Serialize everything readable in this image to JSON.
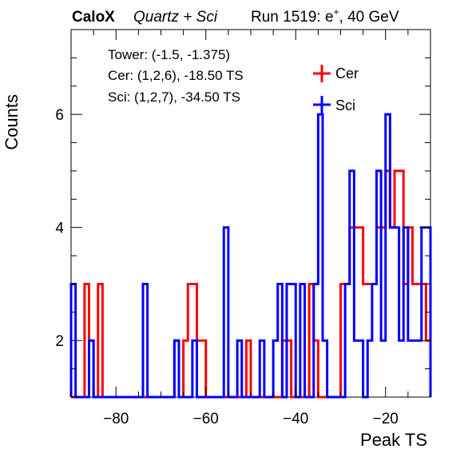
{
  "header": {
    "calox": "CaloX",
    "detector": "Quartz + Sci",
    "run_prefix": "Run 1519: e",
    "run_sup": "+",
    "run_suffix": ", 40 GeV"
  },
  "info": {
    "tower": "Tower: (-1.5, -1.375)",
    "cer": "Cer: (1,2,6), -18.50 TS",
    "sci": "Sci: (1,2,7), -34.50 TS"
  },
  "chart_data": {
    "type": "histogram",
    "xlabel": "Peak TS",
    "ylabel": "Counts",
    "xlim": [
      -90,
      -10
    ],
    "ylim": [
      1,
      7.5
    ],
    "bin_width": 1,
    "x_ticks": [
      -80,
      -60,
      -40,
      -20
    ],
    "x_tick_labels": [
      "−80",
      "−60",
      "−40",
      "−20"
    ],
    "y_ticks": [
      2,
      4,
      6
    ],
    "y_tick_labels": [
      "2",
      "4",
      "6"
    ],
    "legend_position": "top-right",
    "series": [
      {
        "name": "Cer",
        "color": "#ff0000",
        "bin_starts": [
          -90,
          -89,
          -88,
          -87,
          -86,
          -85,
          -84,
          -83,
          -82,
          -81,
          -80,
          -79,
          -78,
          -77,
          -76,
          -75,
          -74,
          -73,
          -72,
          -71,
          -70,
          -69,
          -68,
          -67,
          -66,
          -65,
          -64,
          -63,
          -62,
          -61,
          -60,
          -59,
          -58,
          -57,
          -56,
          -55,
          -54,
          -53,
          -52,
          -51,
          -50,
          -49,
          -48,
          -47,
          -46,
          -45,
          -44,
          -43,
          -42,
          -41,
          -40,
          -39,
          -38,
          -37,
          -36,
          -35,
          -34,
          -33,
          -32,
          -31,
          -30,
          -29,
          -28,
          -27,
          -26,
          -25,
          -24,
          -23,
          -22,
          -21,
          -20,
          -19,
          -18,
          -17,
          -16,
          -15,
          -14,
          -13,
          -12,
          -11
        ],
        "counts": [
          1,
          1,
          1,
          3,
          2,
          1,
          3,
          1,
          1,
          1,
          1,
          1,
          1,
          1,
          1,
          1,
          1,
          1,
          1,
          1,
          1,
          1,
          1,
          2,
          1,
          2,
          3,
          3,
          2,
          2,
          1,
          1,
          1,
          1,
          1,
          1,
          1,
          1,
          1,
          2,
          1,
          1,
          1,
          1,
          1,
          1,
          1,
          2,
          2,
          1,
          1,
          1,
          1,
          3,
          2,
          1,
          1,
          1,
          1,
          1,
          3,
          3,
          4,
          4,
          4,
          3,
          3,
          3,
          4,
          4,
          5,
          4,
          5,
          5,
          3,
          4,
          3,
          3,
          3,
          2
        ]
      },
      {
        "name": "Sci",
        "color": "#0000ff",
        "bin_starts": [
          -90,
          -89,
          -88,
          -87,
          -86,
          -85,
          -84,
          -83,
          -82,
          -81,
          -80,
          -79,
          -78,
          -77,
          -76,
          -75,
          -74,
          -73,
          -72,
          -71,
          -70,
          -69,
          -68,
          -67,
          -66,
          -65,
          -64,
          -63,
          -62,
          -61,
          -60,
          -59,
          -58,
          -57,
          -56,
          -55,
          -54,
          -53,
          -52,
          -51,
          -50,
          -49,
          -48,
          -47,
          -46,
          -45,
          -44,
          -43,
          -42,
          -41,
          -40,
          -39,
          -38,
          -37,
          -36,
          -35,
          -34,
          -33,
          -32,
          -31,
          -30,
          -29,
          -28,
          -27,
          -26,
          -25,
          -24,
          -23,
          -22,
          -21,
          -20,
          -19,
          -18,
          -17,
          -16,
          -15,
          -14,
          -13,
          -12,
          -11
        ],
        "counts": [
          3,
          1,
          1,
          1,
          2,
          1,
          1,
          1,
          1,
          1,
          1,
          1,
          1,
          1,
          1,
          1,
          3,
          1,
          1,
          1,
          1,
          1,
          1,
          2,
          1,
          1,
          1,
          2,
          1,
          1,
          1,
          1,
          1,
          1,
          4,
          1,
          1,
          2,
          1,
          1,
          1,
          1,
          2,
          1,
          1,
          2,
          3,
          1,
          3,
          3,
          1,
          3,
          1,
          1,
          3,
          6,
          2,
          1,
          1,
          1,
          1,
          3,
          5,
          2,
          2,
          1,
          2,
          3,
          5,
          2,
          6,
          4,
          4,
          2,
          4,
          2,
          2,
          2,
          4,
          4
        ]
      }
    ]
  }
}
